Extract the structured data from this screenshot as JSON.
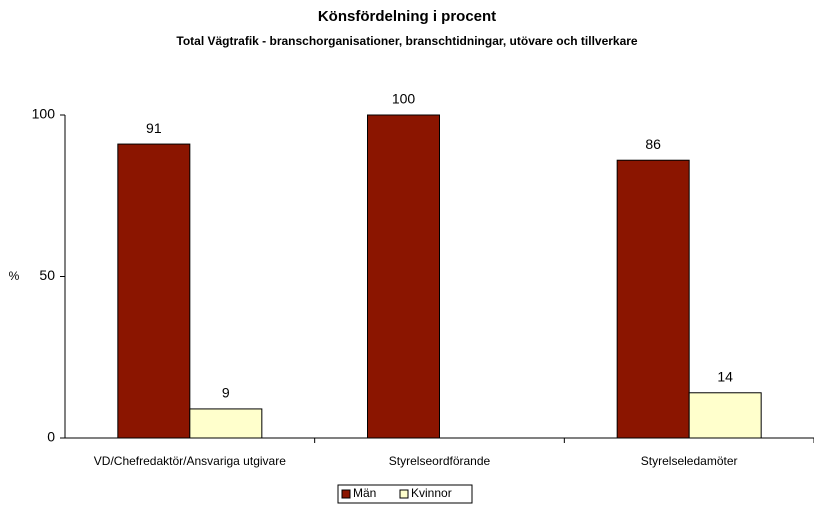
{
  "chart_data": {
    "type": "bar",
    "title": "Könsfördelning i procent",
    "subtitle": "Total Vägtrafik - branschorganisationer, branschtidningar, utövare och tillverkare",
    "y_label": "%",
    "categories": [
      "VD/Chefredaktör/Ansvariga utgivare",
      "Styrelseordförande",
      "Styrelseledamöter"
    ],
    "series": [
      {
        "name": "Män",
        "color": "#8b1500",
        "values": [
          91,
          100,
          86
        ]
      },
      {
        "name": "Kvinnor",
        "color": "#ffffcc",
        "values": [
          9,
          null,
          14
        ]
      }
    ],
    "ylim": [
      0,
      100
    ],
    "yticks": [
      0,
      50,
      100
    ],
    "grid": false,
    "legend": "bottom"
  }
}
